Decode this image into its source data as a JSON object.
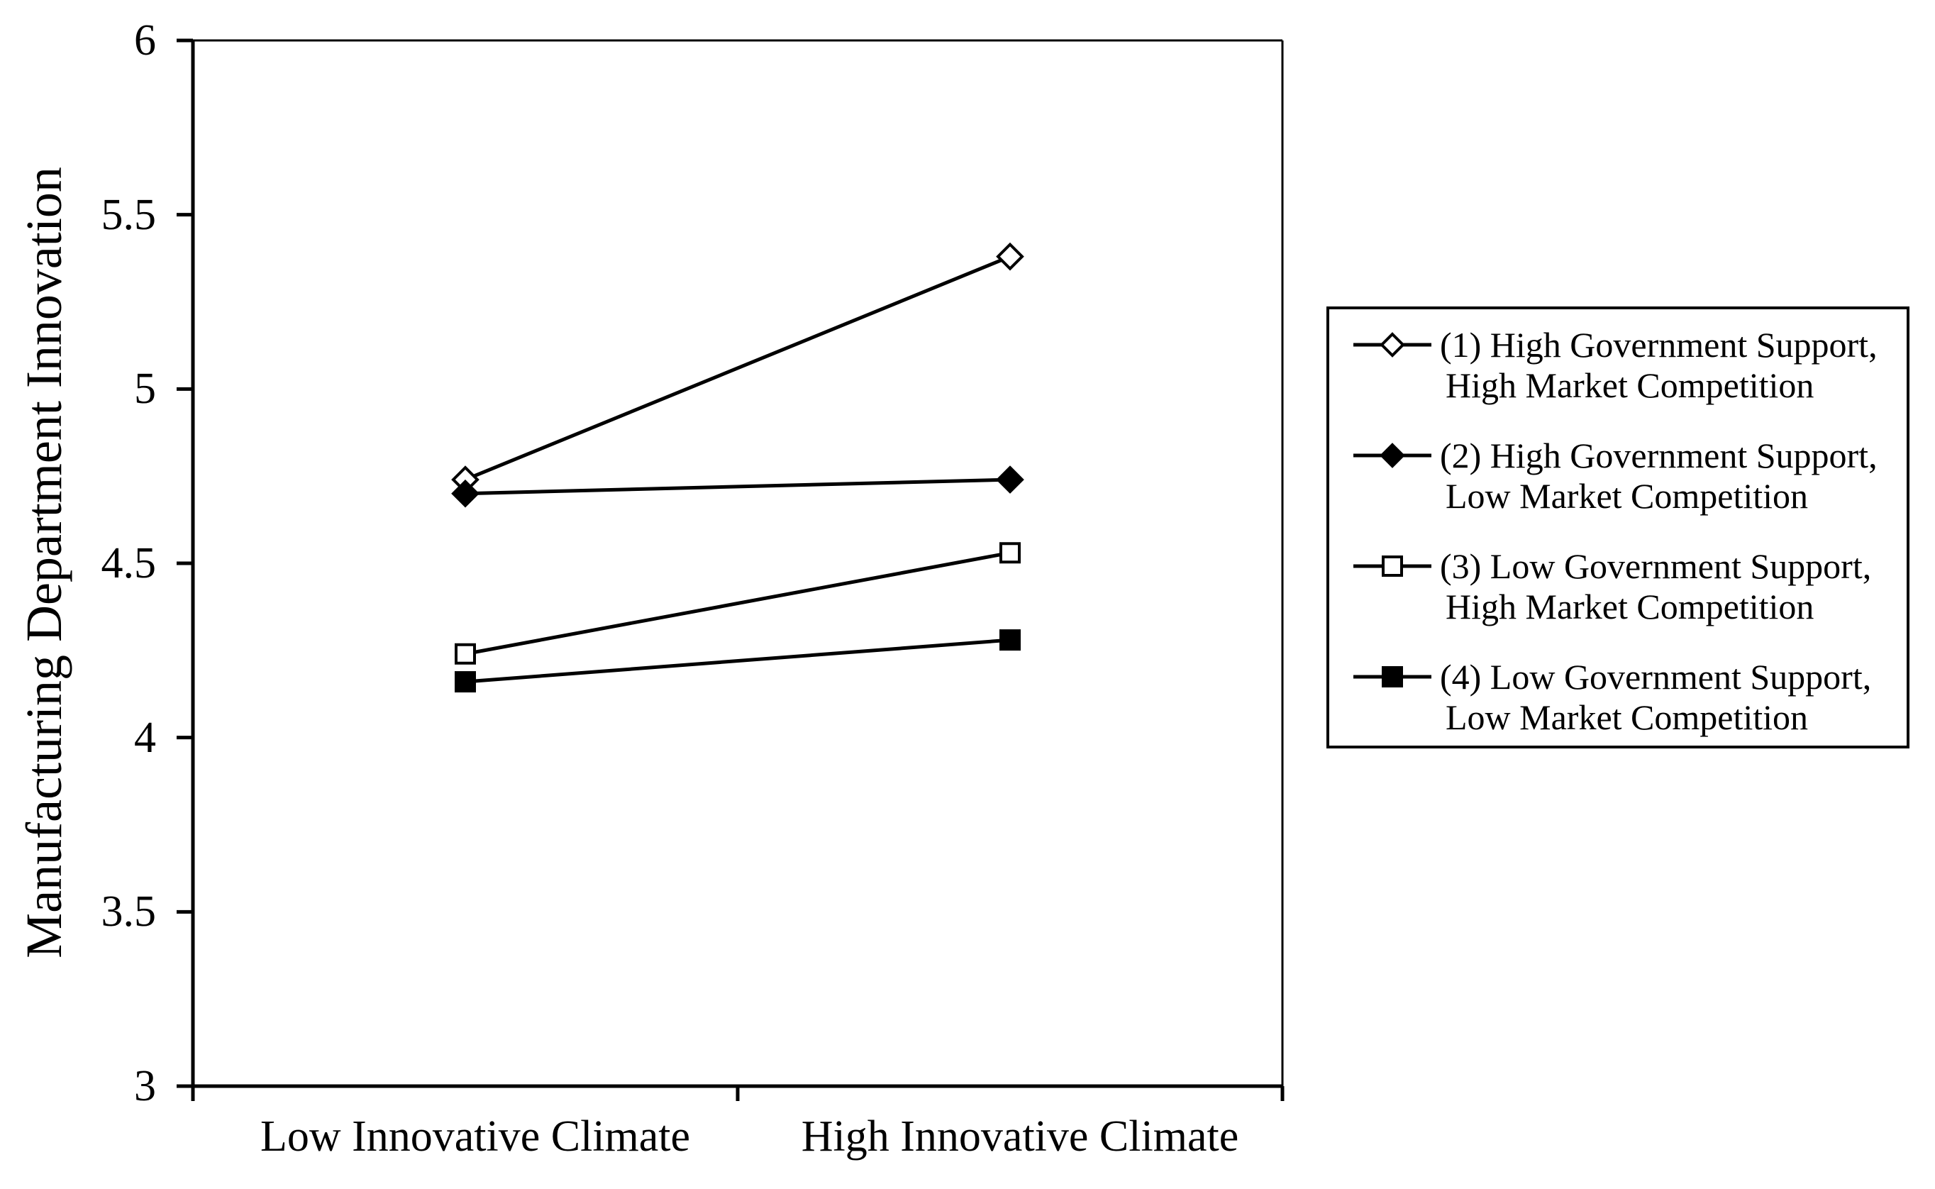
{
  "chart_data": {
    "type": "line",
    "title": "",
    "xlabel": "",
    "ylabel": "Manufacturing Department Innovation",
    "categories": [
      "Low Innovative Climate",
      "High Innovative Climate"
    ],
    "ylim": [
      3,
      6
    ],
    "ytick_interval": 0.5,
    "ytick_labels": [
      "6",
      "5.5",
      "5",
      "4.5",
      "4",
      "3.5",
      "3"
    ],
    "grid": false,
    "legend_position": "right-box",
    "colors": {
      "line": "#000000",
      "frame": "#000000",
      "background": "#ffffff",
      "marker_fill_open": "#ffffff",
      "marker_fill_solid": "#000000"
    },
    "series": [
      {
        "name": "(1) High Government Support, High Market Competition",
        "legend_lines": [
          "(1) High Government Support,",
          "High Market Competition"
        ],
        "marker": "diamond-open",
        "values": [
          4.74,
          5.38
        ]
      },
      {
        "name": "(2) High Government Support, Low Market Competition",
        "legend_lines": [
          "(2) High Government Support,",
          "Low Market Competition"
        ],
        "marker": "diamond-filled",
        "values": [
          4.7,
          4.74
        ]
      },
      {
        "name": "(3) Low Government Support, High Market Competition",
        "legend_lines": [
          "(3) Low Government Support,",
          "High Market Competition"
        ],
        "marker": "square-open",
        "values": [
          4.24,
          4.53
        ]
      },
      {
        "name": "(4) Low Government Support, Low Market Competition",
        "legend_lines": [
          "(4) Low Government Support,",
          "Low Market Competition"
        ],
        "marker": "square-filled",
        "values": [
          4.16,
          4.28
        ]
      }
    ]
  }
}
